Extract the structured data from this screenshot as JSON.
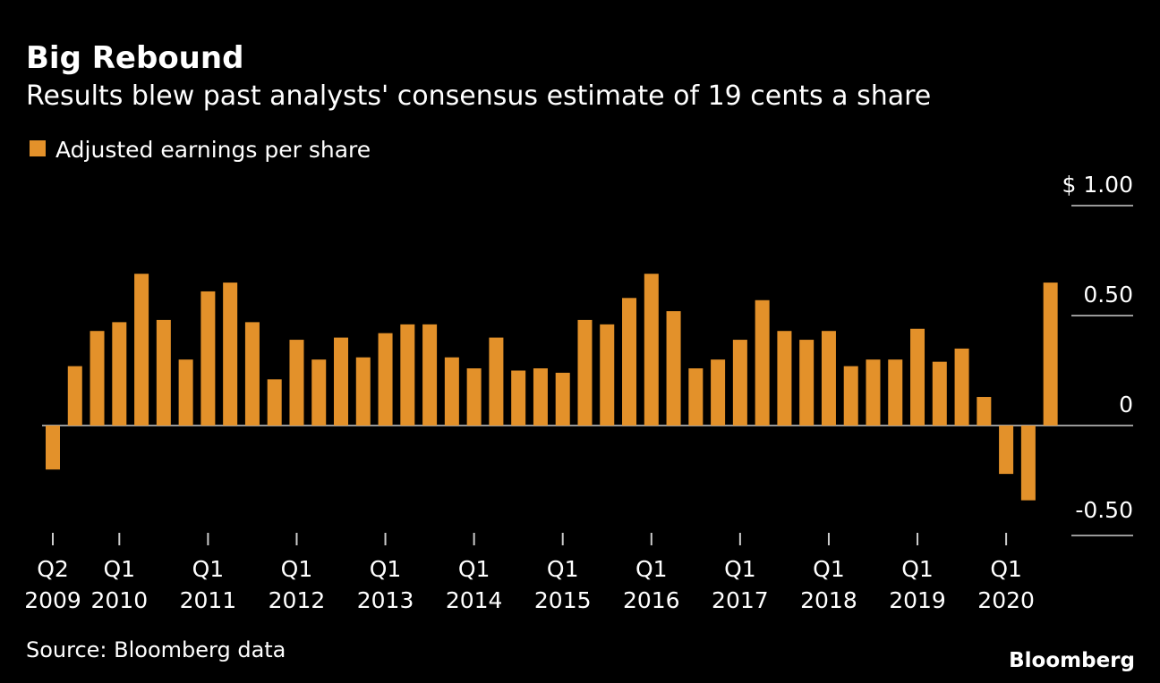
{
  "chart_data": {
    "type": "bar",
    "title": "Big Rebound",
    "subtitle": "Results blew past analysts' consensus estimate of 19 cents a share",
    "legend": "Adjusted earnings per share",
    "legend_placement": "top-left",
    "source": "Source: Bloomberg data",
    "brand": "Bloomberg",
    "bar_color": "#e3912a",
    "ylim": [
      -0.5,
      1.0
    ],
    "yticks": [
      {
        "value": 1.0,
        "label": "$ 1.00"
      },
      {
        "value": 0.5,
        "label": "0.50"
      },
      {
        "value": 0,
        "label": "0"
      },
      {
        "value": -0.5,
        "label": "-0.50"
      }
    ],
    "xticks": [
      {
        "index": 0,
        "q": "Q2",
        "year": "2009"
      },
      {
        "index": 3,
        "q": "Q1",
        "year": "2010"
      },
      {
        "index": 7,
        "q": "Q1",
        "year": "2011"
      },
      {
        "index": 11,
        "q": "Q1",
        "year": "2012"
      },
      {
        "index": 15,
        "q": "Q1",
        "year": "2013"
      },
      {
        "index": 19,
        "q": "Q1",
        "year": "2014"
      },
      {
        "index": 23,
        "q": "Q1",
        "year": "2015"
      },
      {
        "index": 27,
        "q": "Q1",
        "year": "2016"
      },
      {
        "index": 31,
        "q": "Q1",
        "year": "2017"
      },
      {
        "index": 35,
        "q": "Q1",
        "year": "2018"
      },
      {
        "index": 39,
        "q": "Q1",
        "year": "2019"
      },
      {
        "index": 43,
        "q": "Q1",
        "year": "2020"
      }
    ],
    "categories": [
      "Q2 2009",
      "Q3 2009",
      "Q4 2009",
      "Q1 2010",
      "Q2 2010",
      "Q3 2010",
      "Q4 2010",
      "Q1 2011",
      "Q2 2011",
      "Q3 2011",
      "Q4 2011",
      "Q1 2012",
      "Q2 2012",
      "Q3 2012",
      "Q4 2012",
      "Q1 2013",
      "Q2 2013",
      "Q3 2013",
      "Q4 2013",
      "Q1 2014",
      "Q2 2014",
      "Q3 2014",
      "Q4 2014",
      "Q1 2015",
      "Q2 2015",
      "Q3 2015",
      "Q4 2015",
      "Q1 2016",
      "Q2 2016",
      "Q3 2016",
      "Q4 2016",
      "Q1 2017",
      "Q2 2017",
      "Q3 2017",
      "Q4 2017",
      "Q1 2018",
      "Q2 2018",
      "Q3 2018",
      "Q4 2018",
      "Q1 2019",
      "Q2 2019",
      "Q3 2019",
      "Q4 2019",
      "Q1 2020",
      "Q2 2020",
      "Q3 2020"
    ],
    "values": [
      -0.2,
      0.27,
      0.43,
      0.47,
      0.69,
      0.48,
      0.3,
      0.61,
      0.65,
      0.47,
      0.21,
      0.39,
      0.3,
      0.4,
      0.31,
      0.42,
      0.46,
      0.46,
      0.31,
      0.26,
      0.4,
      0.25,
      0.26,
      0.24,
      0.48,
      0.46,
      0.58,
      0.69,
      0.52,
      0.26,
      0.3,
      0.39,
      0.57,
      0.43,
      0.39,
      0.43,
      0.27,
      0.3,
      0.3,
      0.44,
      0.29,
      0.35,
      0.13,
      -0.22,
      -0.34,
      0.65
    ]
  }
}
